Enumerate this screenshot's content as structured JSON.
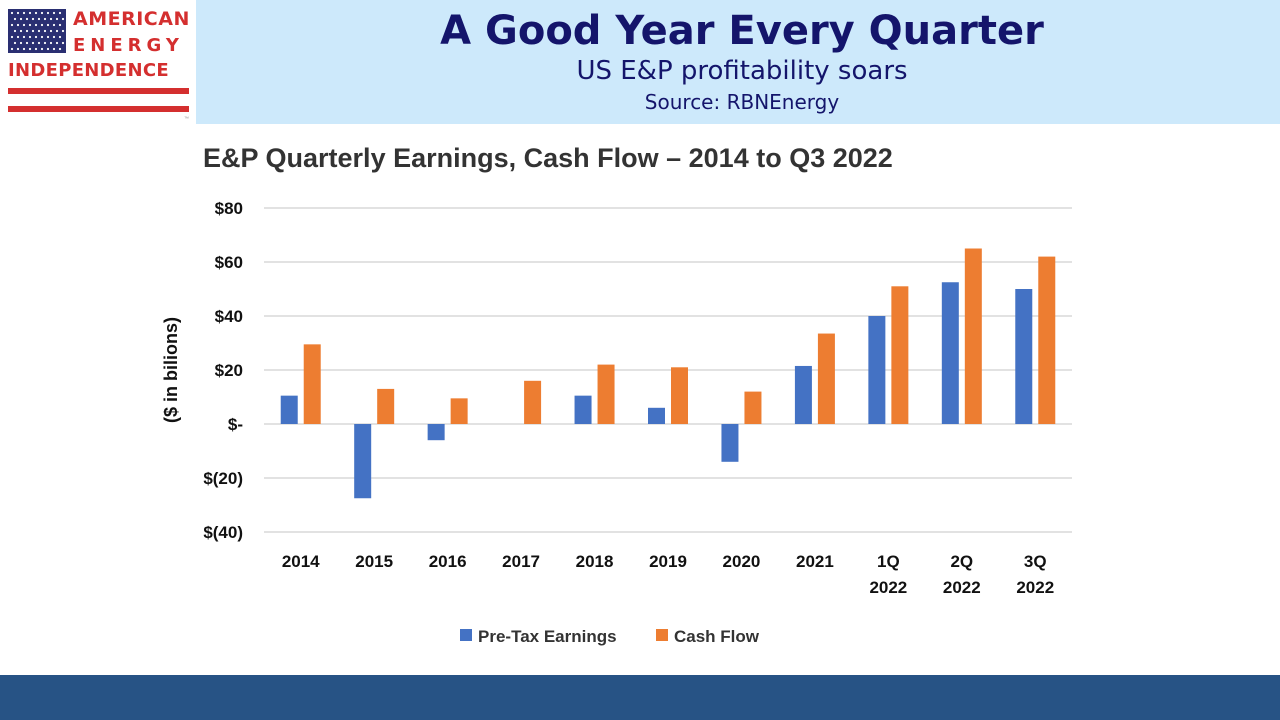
{
  "header": {
    "logo": {
      "line1": "AMERICAN",
      "line2": "ENERGY",
      "line3": "INDEPENDENCE"
    },
    "title": "A Good Year Every Quarter",
    "subtitle": "US E&P profitability soars",
    "source": "Source: RBNEnergy"
  },
  "colors": {
    "header_bg": "#cde9fb",
    "title_text": "#14156b",
    "footer_bar": "#275385",
    "series_earnings": "#4472c4",
    "series_cashflow": "#ed7d31"
  },
  "chart_data": {
    "type": "bar",
    "title": "E&P Quarterly Earnings, Cash Flow – 2014 to Q3 2022",
    "ylabel": "($ in bilions)",
    "xlabel": "",
    "ylim": [
      -40,
      80
    ],
    "yticks": [
      80,
      60,
      40,
      20,
      0,
      -20,
      -40
    ],
    "ytick_labels": [
      "$80",
      "$60",
      "$40",
      "$20",
      "$-",
      "$(20)",
      "$(40)"
    ],
    "categories": [
      [
        "2014"
      ],
      [
        "2015"
      ],
      [
        "2016"
      ],
      [
        "2017"
      ],
      [
        "2018"
      ],
      [
        "2019"
      ],
      [
        "2020"
      ],
      [
        "2021"
      ],
      [
        "1Q",
        "2022"
      ],
      [
        "2Q",
        "2022"
      ],
      [
        "3Q",
        "2022"
      ]
    ],
    "series": [
      {
        "name": "Pre-Tax Earnings",
        "color": "#4472c4",
        "values": [
          10.5,
          -27.5,
          -6,
          0,
          10.5,
          6,
          -14,
          21.5,
          40,
          52.5,
          50
        ]
      },
      {
        "name": "Cash Flow",
        "color": "#ed7d31",
        "values": [
          29.5,
          13,
          9.5,
          16,
          22,
          21,
          12,
          33.5,
          51,
          65,
          62
        ]
      }
    ],
    "grid": true,
    "legend": "bottom"
  }
}
